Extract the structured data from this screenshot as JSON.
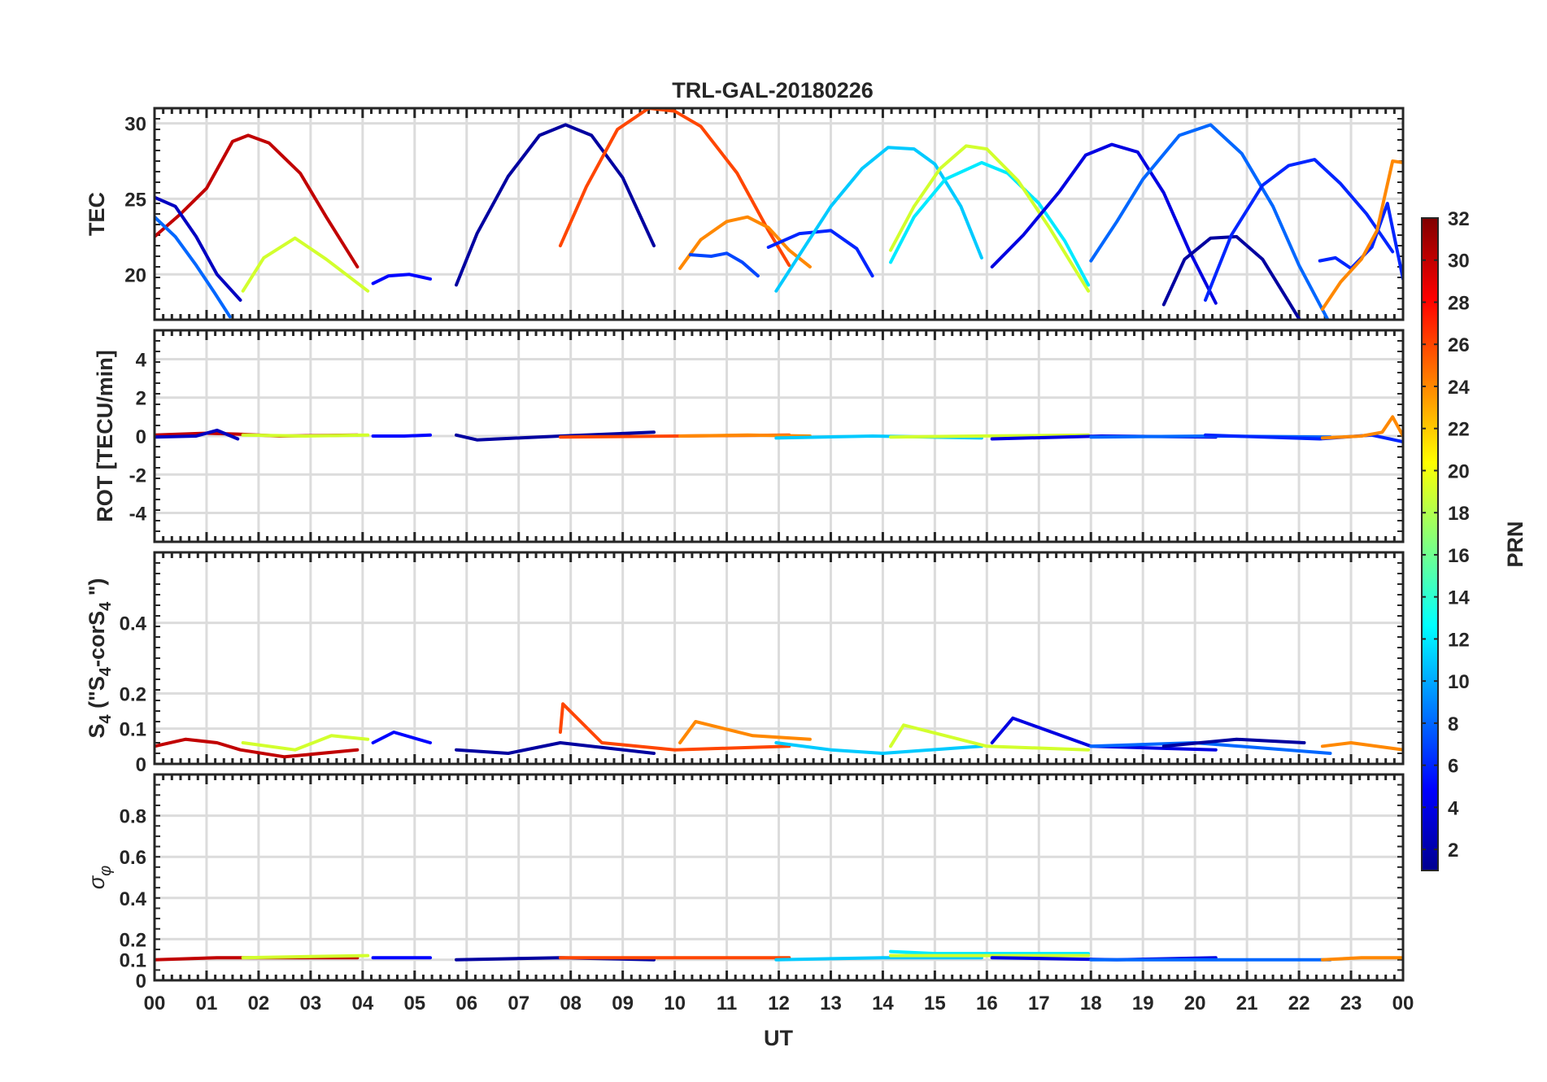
{
  "chart_data": {
    "type": "line",
    "title": "TRL-GAL-20180226",
    "xlabel": "UT",
    "x_ticks": [
      "00",
      "01",
      "02",
      "03",
      "04",
      "05",
      "06",
      "07",
      "08",
      "09",
      "10",
      "11",
      "12",
      "13",
      "14",
      "15",
      "16",
      "17",
      "18",
      "19",
      "20",
      "21",
      "22",
      "23",
      "00"
    ],
    "xlim": [
      0,
      24
    ],
    "grid": true,
    "colorbar": {
      "label": "PRN",
      "range": [
        1,
        32
      ],
      "ticks": [
        "2",
        "4",
        "6",
        "8",
        "10",
        "12",
        "14",
        "16",
        "18",
        "20",
        "22",
        "24",
        "26",
        "28",
        "30",
        "32"
      ],
      "colormap": "jet"
    },
    "panels": [
      {
        "id": "tec",
        "ylabel": "TEC",
        "ylim": [
          17,
          31
        ],
        "yticks": [
          "20",
          "25",
          "30"
        ],
        "series": [
          {
            "prn": 30,
            "x": [
              0,
              0.5,
              1.0,
              1.5,
              1.8,
              2.2,
              2.8,
              3.3,
              3.9
            ],
            "y": [
              22.5,
              24.0,
              25.7,
              28.8,
              29.2,
              28.7,
              26.7,
              23.8,
              20.5
            ]
          },
          {
            "prn": 3,
            "x": [
              0,
              0.4,
              0.8,
              1.2,
              1.65
            ],
            "y": [
              25.1,
              24.5,
              22.5,
              20.0,
              18.3
            ]
          },
          {
            "prn": 8,
            "x": [
              0,
              0.4,
              0.8,
              1.15,
              1.45
            ],
            "y": [
              23.8,
              22.5,
              20.6,
              18.8,
              17.2
            ]
          },
          {
            "prn": 19,
            "x": [
              1.7,
              2.1,
              2.7,
              3.3,
              4.1
            ],
            "y": [
              18.9,
              21.1,
              22.4,
              21.0,
              18.9
            ]
          },
          {
            "prn": 5,
            "x": [
              4.2,
              4.5,
              4.9,
              5.3
            ],
            "y": [
              19.4,
              19.9,
              20.0,
              19.7
            ]
          },
          {
            "prn": 2,
            "x": [
              5.8,
              6.2,
              6.8,
              7.4,
              7.9,
              8.4,
              9.0,
              9.6
            ],
            "y": [
              19.3,
              22.7,
              26.5,
              29.2,
              29.9,
              29.2,
              26.4,
              21.9
            ]
          },
          {
            "prn": 26,
            "x": [
              7.8,
              8.3,
              8.9,
              9.5,
              10.0,
              10.5,
              11.2,
              11.8,
              12.2
            ],
            "y": [
              21.9,
              25.8,
              29.6,
              31.0,
              30.8,
              29.8,
              26.7,
              22.9,
              20.6
            ]
          },
          {
            "prn": 24,
            "x": [
              10.1,
              10.5,
              11.0,
              11.4,
              11.8,
              12.2,
              12.6
            ],
            "y": [
              20.4,
              22.3,
              23.5,
              23.8,
              23.1,
              21.6,
              20.5
            ]
          },
          {
            "prn": 7,
            "x": [
              10.3,
              10.7,
              11.0,
              11.3,
              11.6
            ],
            "y": [
              21.3,
              21.2,
              21.4,
              20.8,
              19.9
            ]
          },
          {
            "prn": 6,
            "x": [
              11.8,
              12.4,
              13.0,
              13.5,
              13.8
            ],
            "y": [
              21.8,
              22.7,
              22.9,
              21.7,
              19.9
            ]
          },
          {
            "prn": 11,
            "x": [
              11.95,
              12.4,
              13.0,
              13.6,
              14.1,
              14.6,
              15.0,
              15.5,
              15.9
            ],
            "y": [
              18.9,
              21.3,
              24.5,
              27.0,
              28.4,
              28.3,
              27.3,
              24.5,
              21.1
            ]
          },
          {
            "prn": 12,
            "x": [
              14.15,
              14.6,
              15.2,
              15.9,
              16.4,
              17.0,
              17.5,
              17.95
            ],
            "y": [
              20.8,
              23.8,
              26.3,
              27.4,
              26.7,
              24.7,
              22.2,
              19.3
            ]
          },
          {
            "prn": 19,
            "x": [
              14.15,
              14.6,
              15.1,
              15.6,
              16.0,
              16.6,
              17.2,
              17.95
            ],
            "y": [
              21.6,
              24.5,
              27.0,
              28.5,
              28.3,
              26.2,
              23.1,
              18.9
            ]
          },
          {
            "prn": 4,
            "x": [
              16.1,
              16.7,
              17.4,
              17.9,
              18.4,
              18.9,
              19.4,
              19.9,
              20.4
            ],
            "y": [
              20.5,
              22.6,
              25.5,
              27.9,
              28.6,
              28.1,
              25.4,
              21.5,
              18.1
            ]
          },
          {
            "prn": 8,
            "x": [
              18.0,
              18.5,
              19.0,
              19.7,
              20.3,
              20.9,
              21.5,
              22.0,
              22.6
            ],
            "y": [
              20.9,
              23.5,
              26.3,
              29.2,
              29.9,
              28.0,
              24.5,
              20.6,
              16.7
            ]
          },
          {
            "prn": 2,
            "x": [
              19.4,
              19.8,
              20.3,
              20.8,
              21.3,
              21.8,
              22.1
            ],
            "y": [
              18.0,
              21.0,
              22.4,
              22.5,
              21.0,
              18.2,
              16.5
            ]
          },
          {
            "prn": 6,
            "x": [
              20.2,
              20.7,
              21.3,
              21.8,
              22.3,
              22.8,
              23.3,
              23.8
            ],
            "y": [
              18.3,
              22.6,
              25.9,
              27.2,
              27.6,
              26.0,
              24.0,
              21.5
            ]
          },
          {
            "prn": 6,
            "x": [
              22.4,
              22.7,
              23.0,
              23.4,
              23.7,
              24.0
            ],
            "y": [
              20.9,
              21.1,
              20.4,
              21.8,
              24.7,
              19.7
            ]
          },
          {
            "prn": 24,
            "x": [
              22.45,
              22.8,
              23.2,
              23.5,
              23.8,
              24.0
            ],
            "y": [
              17.7,
              19.5,
              21.0,
              22.9,
              27.5,
              27.4
            ]
          }
        ]
      },
      {
        "id": "rot",
        "ylabel": "ROT [TECU/min]",
        "ylim": [
          -5.5,
          5.5
        ],
        "yticks": [
          "-4",
          "-2",
          "0",
          "2",
          "4"
        ],
        "series": [
          {
            "prn": 30,
            "x": [
              0,
              1.0,
              1.6,
              2.4,
              3.9
            ],
            "y": [
              0.05,
              0.15,
              0.1,
              0.0,
              0.05
            ]
          },
          {
            "prn": 3,
            "x": [
              0,
              0.8,
              1.2,
              1.6
            ],
            "y": [
              -0.05,
              0.0,
              0.3,
              -0.15
            ]
          },
          {
            "prn": 19,
            "x": [
              1.7,
              2.9,
              4.1
            ],
            "y": [
              0.05,
              0.0,
              0.05
            ]
          },
          {
            "prn": 5,
            "x": [
              4.2,
              4.8,
              5.3
            ],
            "y": [
              0.0,
              0.0,
              0.05
            ]
          },
          {
            "prn": 2,
            "x": [
              5.8,
              6.2,
              7.8,
              9.6
            ],
            "y": [
              0.05,
              -0.2,
              0.0,
              0.2
            ]
          },
          {
            "prn": 26,
            "x": [
              7.8,
              10.0,
              12.2
            ],
            "y": [
              -0.05,
              0.0,
              0.05
            ]
          },
          {
            "prn": 24,
            "x": [
              10.1,
              11.4,
              12.6
            ],
            "y": [
              0.0,
              0.05,
              0.0
            ]
          },
          {
            "prn": 11,
            "x": [
              11.95,
              13.8,
              15.9
            ],
            "y": [
              -0.1,
              0.0,
              -0.1
            ]
          },
          {
            "prn": 19,
            "x": [
              14.15,
              15.8,
              17.95
            ],
            "y": [
              -0.05,
              0.0,
              0.05
            ]
          },
          {
            "prn": 4,
            "x": [
              16.1,
              18.2,
              20.4
            ],
            "y": [
              -0.15,
              0.0,
              -0.05
            ]
          },
          {
            "prn": 8,
            "x": [
              18.0,
              20.3,
              22.6
            ],
            "y": [
              -0.05,
              0.0,
              -0.05
            ]
          },
          {
            "prn": 6,
            "x": [
              20.2,
              22.4,
              23.4,
              24.0
            ],
            "y": [
              0.05,
              -0.15,
              0.05,
              -0.3
            ]
          },
          {
            "prn": 24,
            "x": [
              22.45,
              23.2,
              23.6,
              23.8,
              24.0
            ],
            "y": [
              -0.1,
              0.0,
              0.2,
              1.0,
              0.0
            ]
          }
        ]
      },
      {
        "id": "s4",
        "ylabel": "S4 (\"S4-corS4\")",
        "ylim": [
          0,
          0.6
        ],
        "yticks": [
          "0",
          "0.1",
          "0.2",
          "0.4"
        ],
        "series": [
          {
            "prn": 30,
            "x": [
              0,
              0.6,
              1.2,
              1.65,
              2.5,
              3.9
            ],
            "y": [
              0.05,
              0.07,
              0.06,
              0.04,
              0.02,
              0.04
            ]
          },
          {
            "prn": 19,
            "x": [
              1.7,
              2.7,
              3.4,
              4.1
            ],
            "y": [
              0.06,
              0.04,
              0.08,
              0.07
            ]
          },
          {
            "prn": 5,
            "x": [
              4.2,
              4.6,
              5.3
            ],
            "y": [
              0.06,
              0.09,
              0.06
            ]
          },
          {
            "prn": 2,
            "x": [
              5.8,
              6.8,
              7.8,
              9.6
            ],
            "y": [
              0.04,
              0.03,
              0.06,
              0.03
            ]
          },
          {
            "prn": 26,
            "x": [
              7.8,
              7.85,
              8.6,
              10.0,
              12.2
            ],
            "y": [
              0.09,
              0.17,
              0.06,
              0.04,
              0.05
            ]
          },
          {
            "prn": 24,
            "x": [
              10.1,
              10.4,
              11.5,
              12.6
            ],
            "y": [
              0.06,
              0.12,
              0.08,
              0.07
            ]
          },
          {
            "prn": 11,
            "x": [
              11.95,
              13.0,
              14.0,
              15.9
            ],
            "y": [
              0.06,
              0.04,
              0.03,
              0.05
            ]
          },
          {
            "prn": 19,
            "x": [
              14.15,
              14.4,
              16.0,
              17.95
            ],
            "y": [
              0.05,
              0.11,
              0.05,
              0.04
            ]
          },
          {
            "prn": 4,
            "x": [
              16.1,
              16.5,
              18.0,
              20.4
            ],
            "y": [
              0.06,
              0.13,
              0.05,
              0.04
            ]
          },
          {
            "prn": 8,
            "x": [
              18.0,
              20.0,
              22.6
            ],
            "y": [
              0.05,
              0.06,
              0.03
            ]
          },
          {
            "prn": 2,
            "x": [
              19.4,
              20.8,
              22.1
            ],
            "y": [
              0.05,
              0.07,
              0.06
            ]
          },
          {
            "prn": 24,
            "x": [
              22.45,
              23.0,
              24.0
            ],
            "y": [
              0.05,
              0.06,
              0.04
            ]
          }
        ]
      },
      {
        "id": "sigma_phi",
        "ylabel": "σφ",
        "ylim": [
          0,
          1.0
        ],
        "yticks": [
          "0",
          "0.1",
          "0.2",
          "0.4",
          "0.6",
          "0.8"
        ],
        "series": [
          {
            "prn": 30,
            "x": [
              0,
              1.2,
              3.9
            ],
            "y": [
              0.1,
              0.11,
              0.11
            ]
          },
          {
            "prn": 19,
            "x": [
              1.7,
              4.1
            ],
            "y": [
              0.11,
              0.12
            ]
          },
          {
            "prn": 5,
            "x": [
              4.2,
              5.3
            ],
            "y": [
              0.11,
              0.11
            ]
          },
          {
            "prn": 2,
            "x": [
              5.8,
              7.8,
              9.6
            ],
            "y": [
              0.1,
              0.11,
              0.1
            ]
          },
          {
            "prn": 26,
            "x": [
              7.8,
              10.0,
              12.2
            ],
            "y": [
              0.11,
              0.11,
              0.11
            ]
          },
          {
            "prn": 11,
            "x": [
              11.95,
              14.0,
              15.9
            ],
            "y": [
              0.1,
              0.11,
              0.11
            ]
          },
          {
            "prn": 12,
            "x": [
              14.15,
              15.0,
              17.95
            ],
            "y": [
              0.14,
              0.13,
              0.13
            ]
          },
          {
            "prn": 19,
            "x": [
              14.15,
              16.0,
              17.95
            ],
            "y": [
              0.12,
              0.12,
              0.12
            ]
          },
          {
            "prn": 4,
            "x": [
              16.1,
              18.5,
              20.4
            ],
            "y": [
              0.11,
              0.1,
              0.11
            ]
          },
          {
            "prn": 8,
            "x": [
              18.0,
              20.3,
              22.6
            ],
            "y": [
              0.1,
              0.1,
              0.1
            ]
          },
          {
            "prn": 24,
            "x": [
              22.45,
              23.2,
              24.0
            ],
            "y": [
              0.1,
              0.11,
              0.11
            ]
          }
        ]
      }
    ]
  }
}
